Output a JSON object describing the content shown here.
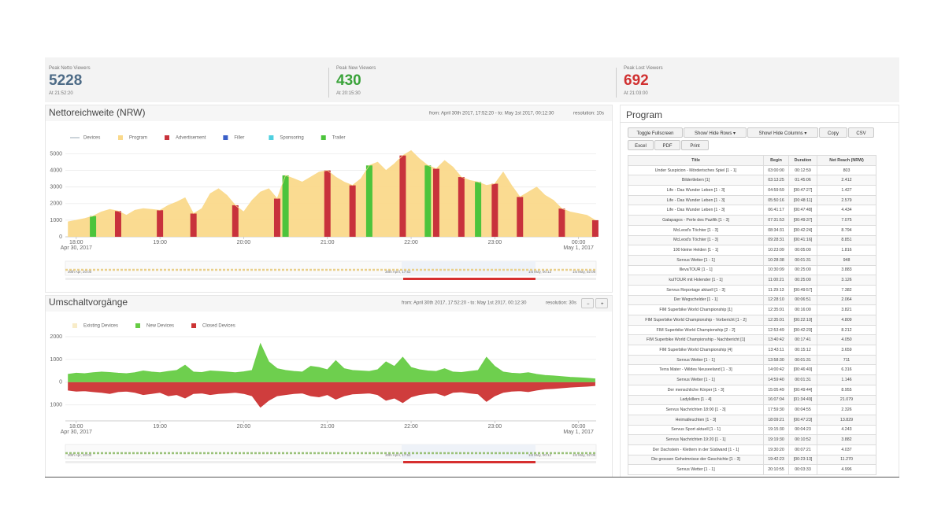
{
  "stats": [
    {
      "label": "Peak Netto Viewers",
      "value": 5228,
      "time": "At 21:52:20",
      "color": "#4d6b86"
    },
    {
      "label": "Peak New Viewers",
      "value": 430,
      "time": "At 20:15:30",
      "color": "#3aa33a"
    },
    {
      "label": "Peak Lost Viewers",
      "value": 692,
      "time": "At 21:03:00",
      "color": "#d03030"
    }
  ],
  "netto_panel": {
    "title": "Nettoreichweite (NRW)",
    "range": "from: April 30th 2017, 17:52:20 - to: May 1st 2017, 00:12:30",
    "resolution": "resolution: 10s",
    "navigator": [
      "30th Apr, 20:00",
      "30th April, 17:52",
      "1st May, 00:12",
      "1st May, 02:06"
    ],
    "chart": {
      "type": "area",
      "legend": [
        {
          "name": "Devices",
          "color": "#9aa8b5",
          "swatch": "line"
        },
        {
          "name": "Program",
          "color": "#fad98b",
          "swatch": "box"
        },
        {
          "name": "Advertisement",
          "color": "#c8323c",
          "swatch": "box"
        },
        {
          "name": "Filler",
          "color": "#3a5fc8",
          "swatch": "box"
        },
        {
          "name": "Sponsoring",
          "color": "#4fd0e0",
          "swatch": "box"
        },
        {
          "name": "Trailer",
          "color": "#4cc43c",
          "swatch": "box"
        }
      ],
      "x": [
        17.9,
        18.0,
        18.1,
        18.2,
        18.3,
        18.4,
        18.5,
        18.6,
        18.7,
        18.8,
        18.9,
        19.0,
        19.1,
        19.2,
        19.3,
        19.4,
        19.5,
        19.6,
        19.7,
        19.8,
        19.9,
        20.0,
        20.1,
        20.2,
        20.3,
        20.4,
        20.5,
        20.6,
        20.7,
        20.8,
        20.9,
        21.0,
        21.1,
        21.2,
        21.3,
        21.4,
        21.5,
        21.6,
        21.7,
        21.8,
        21.9,
        22.0,
        22.1,
        22.2,
        22.3,
        22.4,
        22.5,
        22.6,
        22.7,
        22.8,
        22.9,
        23.0,
        23.1,
        23.2,
        23.3,
        23.4,
        23.5,
        23.6,
        23.7,
        23.8,
        23.9,
        24.0,
        24.1,
        24.2
      ],
      "series": [
        {
          "name": "Program",
          "color": "#fad98b",
          "style": "area",
          "values": [
            900,
            1000,
            1100,
            1250,
            1500,
            1650,
            1550,
            1300,
            1600,
            1700,
            1650,
            1600,
            1900,
            2100,
            2350,
            1400,
            1700,
            2600,
            2900,
            2500,
            1900,
            1500,
            2200,
            2700,
            2900,
            2300,
            3700,
            3500,
            3300,
            3600,
            3900,
            4000,
            3600,
            3300,
            3100,
            3500,
            4300,
            4500,
            4000,
            4400,
            4900,
            5200,
            4700,
            4300,
            4100,
            4600,
            4200,
            3600,
            3400,
            3300,
            3100,
            3200,
            3900,
            3100,
            2400,
            2700,
            3000,
            2500,
            2200,
            1700,
            1500,
            1400,
            1300,
            1000
          ]
        },
        {
          "name": "Advertisement",
          "color": "#c8323c",
          "style": "bar",
          "values": [
            null,
            null,
            null,
            null,
            null,
            null,
            1550,
            null,
            null,
            null,
            null,
            1600,
            null,
            null,
            null,
            1400,
            null,
            null,
            null,
            null,
            1900,
            null,
            null,
            null,
            null,
            2300,
            null,
            null,
            null,
            null,
            null,
            4000,
            null,
            null,
            3100,
            null,
            null,
            null,
            null,
            null,
            4900,
            null,
            null,
            null,
            4100,
            null,
            null,
            3600,
            null,
            null,
            null,
            3200,
            null,
            null,
            2400,
            null,
            null,
            null,
            null,
            1700,
            null,
            null,
            null,
            1000
          ]
        },
        {
          "name": "Trailer",
          "color": "#4cc43c",
          "style": "bar",
          "values": [
            null,
            null,
            null,
            1250,
            null,
            null,
            null,
            null,
            null,
            null,
            null,
            null,
            null,
            null,
            null,
            null,
            null,
            null,
            null,
            null,
            null,
            null,
            null,
            null,
            null,
            null,
            3700,
            null,
            null,
            null,
            null,
            null,
            null,
            null,
            null,
            null,
            4300,
            null,
            null,
            null,
            null,
            null,
            null,
            4300,
            null,
            null,
            null,
            null,
            null,
            3300,
            null,
            null,
            null,
            null,
            null,
            null,
            null,
            null,
            null,
            null,
            null,
            null,
            null,
            null
          ]
        }
      ],
      "xlim": [
        17.87,
        24.21
      ],
      "ylim": [
        0,
        5500
      ],
      "yticks": [
        0,
        1000,
        2000,
        3000,
        4000,
        5000
      ],
      "xticks": [
        {
          "value": 18,
          "label": "18:00"
        },
        {
          "value": 19,
          "label": "19:00"
        },
        {
          "value": 20,
          "label": "20:00"
        },
        {
          "value": 21,
          "label": "21:00"
        },
        {
          "value": 22,
          "label": "22:00"
        },
        {
          "value": 23,
          "label": "23:00"
        },
        {
          "value": 24,
          "label": "00:00"
        }
      ],
      "date_labels": [
        "Apr 30, 2017",
        "May 1, 2017"
      ],
      "grid": true
    }
  },
  "switch_panel": {
    "title": "Umschaltvorgänge",
    "range": "from: April 30th 2017, 17:52:20 - to: May 1st 2017, 00:12:30",
    "resolution": "resolution: 30s",
    "buttons": [
      "−",
      "+"
    ],
    "navigator": [
      "30th Apr, 20:00",
      "30th April, 17:52",
      "1st May, 00:12",
      "1st May, 02:06"
    ],
    "chart": {
      "type": "area",
      "legend": [
        {
          "name": "Existing Devices",
          "color": "#f8ecc8",
          "swatch": "box"
        },
        {
          "name": "New Devices",
          "color": "#66cc44",
          "swatch": "box"
        },
        {
          "name": "Closed Devices",
          "color": "#cc3333",
          "swatch": "box"
        }
      ],
      "x": [
        17.9,
        18.0,
        18.1,
        18.2,
        18.3,
        18.4,
        18.5,
        18.6,
        18.7,
        18.8,
        18.9,
        19.0,
        19.1,
        19.2,
        19.3,
        19.4,
        19.5,
        19.6,
        19.7,
        19.8,
        19.9,
        20.0,
        20.1,
        20.2,
        20.3,
        20.4,
        20.5,
        20.6,
        20.7,
        20.8,
        20.9,
        21.0,
        21.1,
        21.2,
        21.3,
        21.4,
        21.5,
        21.6,
        21.7,
        21.8,
        21.9,
        22.0,
        22.1,
        22.2,
        22.3,
        22.4,
        22.5,
        22.6,
        22.7,
        22.8,
        22.9,
        23.0,
        23.1,
        23.2,
        23.3,
        23.4,
        23.5,
        23.6,
        23.7,
        23.8,
        23.9,
        24.0,
        24.1,
        24.2
      ],
      "series": [
        {
          "name": "New Devices",
          "color": "#66cc44",
          "style": "area",
          "values": [
            350,
            400,
            380,
            420,
            450,
            430,
            400,
            380,
            420,
            500,
            450,
            420,
            480,
            520,
            750,
            450,
            430,
            500,
            480,
            450,
            420,
            460,
            520,
            1700,
            900,
            600,
            520,
            480,
            450,
            700,
            650,
            550,
            950,
            600,
            520,
            500,
            480,
            550,
            900,
            700,
            1100,
            650,
            550,
            500,
            480,
            600,
            450,
            430,
            480,
            520,
            1100,
            700,
            450,
            400,
            380,
            420,
            350,
            300,
            280,
            250,
            220,
            200,
            180,
            150
          ]
        },
        {
          "name": "Closed Devices",
          "color": "#cc3333",
          "style": "area",
          "values": [
            -350,
            -400,
            -380,
            -420,
            -450,
            -500,
            -420,
            -400,
            -450,
            -550,
            -500,
            -450,
            -600,
            -550,
            -700,
            -500,
            -480,
            -550,
            -500,
            -480,
            -450,
            -500,
            -600,
            -1100,
            -800,
            -600,
            -550,
            -500,
            -480,
            -600,
            -650,
            -550,
            -750,
            -600,
            -520,
            -500,
            -480,
            -550,
            -800,
            -700,
            -900,
            -650,
            -550,
            -500,
            -480,
            -600,
            -450,
            -430,
            -480,
            -520,
            -850,
            -600,
            -450,
            -400,
            -380,
            -420,
            -350,
            -300,
            -280,
            -250,
            -220,
            -200,
            -180,
            -150
          ]
        }
      ],
      "xlim": [
        17.87,
        24.21
      ],
      "ylim": [
        -1700,
        2450
      ],
      "yticks": [
        {
          "value": -1000,
          "label": "1000"
        },
        0,
        1000,
        2000
      ],
      "xticks": [
        {
          "value": 18,
          "label": "18:00"
        },
        {
          "value": 19,
          "label": "19:00"
        },
        {
          "value": 20,
          "label": "20:00"
        },
        {
          "value": 21,
          "label": "21:00"
        },
        {
          "value": 22,
          "label": "22:00"
        },
        {
          "value": 23,
          "label": "23:00"
        },
        {
          "value": 24,
          "label": "00:00"
        }
      ],
      "date_labels": [
        "Apr 30, 2017",
        "May 1, 2017"
      ],
      "grid": true
    }
  },
  "program": {
    "title": "Program",
    "buttons": [
      "Toggle Fullscreen",
      "Show/ Hide Rows ▾",
      "Show/ Hide Columns ▾",
      "Copy",
      "CSV",
      "Excel",
      "PDF",
      "Print"
    ],
    "columns": [
      "Title",
      "Begin",
      "Duration",
      "Net Reach (NRW)"
    ],
    "rows": [
      [
        "Under Suspicion - Mörderisches Spiel [1 - 1]",
        "03:00:00",
        "00:12:59",
        "803"
      ],
      [
        "Bildertleben [1]",
        "03:13:25",
        "01:45:06",
        "2.412"
      ],
      [
        "Life - Das Wunder Leben [1 - 3]",
        "04:59:59",
        "[00:47:27]",
        "1.427"
      ],
      [
        "Life - Das Wunder Leben [1 - 3]",
        "05:50:16",
        "[00:48:11]",
        "2.579"
      ],
      [
        "Life - Das Wunder Leben [1 - 3]",
        "06:41:17",
        "[00:47:48]",
        "4.434"
      ],
      [
        "Galapagos - Perle des Pazifik [1 - 3]",
        "07:31:53",
        "[00:49:37]",
        "7.075"
      ],
      [
        "McLeod's Töchter [1 - 3]",
        "08:34:31",
        "[00:42:24]",
        "8.794"
      ],
      [
        "McLeod's Töchter [1 - 3]",
        "09:28:31",
        "[00:41:16]",
        "8.851"
      ],
      [
        "100 kleine Helden [1 - 1]",
        "10:23:09",
        "00:05:00",
        "1.816"
      ],
      [
        "Servus Wetter [1 - 1]",
        "10:28:38",
        "00:01:31",
        "948"
      ],
      [
        "IllevaTOUR [1 - 1]",
        "10:30:09",
        "00:25:00",
        "3.883"
      ],
      [
        "kulTOUR mit Holender [1 - 1]",
        "11:00:21",
        "00:25:00",
        "3.126"
      ],
      [
        "Servus Reportage aktuell [1 - 3]",
        "11:29:13",
        "[00:49:57]",
        "7.382"
      ],
      [
        "Der Wegschelder [1 - 1]",
        "12:28:10",
        "00:06:51",
        "2.064"
      ],
      [
        "FIM Superbike World Championship [1]",
        "12:35:01",
        "00:16:00",
        "3.821"
      ],
      [
        "FIM Superbike World Championship - Vorbericht [1 - 2]",
        "12:35:01",
        "[00:22:10]",
        "4.809"
      ],
      [
        "FIM Superbike World Championship [2 - 2]",
        "12:53:49",
        "[00:42:20]",
        "8.212"
      ],
      [
        "FIM Superbike World Championship - Nachbericht [1]",
        "13:40:42",
        "00:17:41",
        "4.050"
      ],
      [
        "FIM Superbike World Championship [4]",
        "13:43:11",
        "00:15:12",
        "3.659"
      ],
      [
        "Servus Wetter [1 - 1]",
        "13:58:30",
        "00:01:31",
        "711"
      ],
      [
        "Terra Mater - Wildes Neuseeland [1 - 3]",
        "14:00:42",
        "[00:46:40]",
        "6.316"
      ],
      [
        "Servus Wetter [1 - 1]",
        "14:59:40",
        "00:01:31",
        "1.146"
      ],
      [
        "Der menschliche Körper [1 - 3]",
        "15:05:49",
        "[00:49:44]",
        "8.955"
      ],
      [
        "Ladykillers [1 - 4]",
        "16:07:04",
        "[01:34:49]",
        "21.079"
      ],
      [
        "Servus Nachrichten 18:00 [1 - 3]",
        "17:59:30",
        "00:04:55",
        "2.326"
      ],
      [
        "Heimatleuchten [1 - 3]",
        "18:09:21",
        "[00:47:23]",
        "13.829"
      ],
      [
        "Servus Sport aktuell [1 - 1]",
        "19:15:30",
        "00:04:23",
        "4.243"
      ],
      [
        "Servus Nachrichten 19:20 [1 - 1]",
        "19:19:30",
        "00:10:52",
        "3.882"
      ],
      [
        "Der Dachstein - Klettern in der Südwand [1 - 1]",
        "19:30:20",
        "00:07:21",
        "4.037"
      ],
      [
        "Die grossen Geheimnisse der Geschichte [1 - 3]",
        "19:42:23",
        "[00:23:13]",
        "11.270"
      ],
      [
        "Servus Wetter [1 - 1]",
        "20:10:55",
        "00:03:33",
        "4.996"
      ]
    ]
  }
}
